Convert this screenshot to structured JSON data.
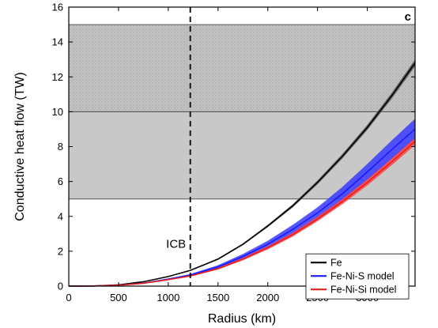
{
  "chart_data": {
    "type": "line",
    "panel_label": "c",
    "xlabel": "Radius (km)",
    "ylabel": "Conductive heat flow (TW)",
    "xlim": [
      0,
      3480
    ],
    "ylim": [
      0,
      16
    ],
    "xticks": [
      0,
      500,
      1000,
      1500,
      2000,
      2500,
      3000
    ],
    "yticks": [
      0,
      2,
      4,
      6,
      8,
      10,
      12,
      14,
      16
    ],
    "grid": false,
    "legend_position": "bottom-right",
    "shaded_bands": [
      {
        "y_range": [
          5,
          10
        ],
        "fill": "#c8c8c8",
        "pattern": false
      },
      {
        "y_range": [
          10,
          15
        ],
        "fill": "#c8c8c8",
        "pattern": true
      }
    ],
    "vertical_line": {
      "x": 1221,
      "style": "dashed",
      "annotation": "ICB"
    },
    "x": [
      0,
      250,
      500,
      750,
      1000,
      1221,
      1500,
      1750,
      2000,
      2250,
      2500,
      2750,
      3000,
      3250,
      3480
    ],
    "series": [
      {
        "name": "Fe",
        "color": "#000000",
        "band_color": "#555555",
        "values": [
          0,
          0.01,
          0.07,
          0.25,
          0.55,
          0.9,
          1.55,
          2.4,
          3.45,
          4.6,
          5.95,
          7.45,
          9.1,
          10.95,
          12.8
        ],
        "band_half_width": [
          0,
          0.0,
          0.0,
          0.01,
          0.02,
          0.03,
          0.04,
          0.05,
          0.07,
          0.09,
          0.11,
          0.13,
          0.15,
          0.17,
          0.2
        ]
      },
      {
        "name": "Fe-Ni-S model",
        "color": "#1a1aff",
        "band_color": "#3a3aff",
        "values": [
          0,
          0.01,
          0.05,
          0.17,
          0.4,
          0.63,
          1.1,
          1.7,
          2.4,
          3.25,
          4.2,
          5.3,
          6.55,
          7.85,
          9.0
        ],
        "band_half_width": [
          0,
          0.0,
          0.01,
          0.02,
          0.04,
          0.06,
          0.1,
          0.14,
          0.2,
          0.26,
          0.32,
          0.39,
          0.46,
          0.53,
          0.6
        ]
      },
      {
        "name": "Fe-Ni-Si model",
        "color": "#e62020",
        "band_color": "#ff4040",
        "values": [
          0,
          0.01,
          0.05,
          0.16,
          0.37,
          0.58,
          1.0,
          1.55,
          2.2,
          2.95,
          3.85,
          4.85,
          5.95,
          7.15,
          8.3
        ],
        "band_half_width": [
          0,
          0.0,
          0.0,
          0.01,
          0.02,
          0.03,
          0.05,
          0.07,
          0.09,
          0.11,
          0.13,
          0.15,
          0.17,
          0.19,
          0.21
        ]
      }
    ]
  }
}
